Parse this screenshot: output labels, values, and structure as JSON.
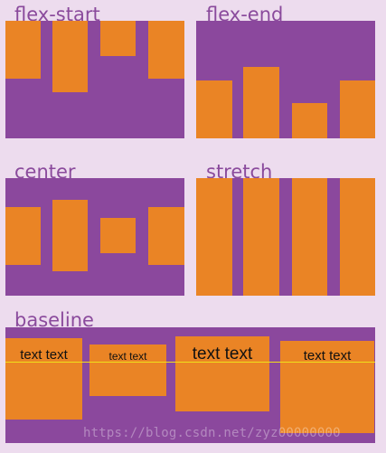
{
  "labels": {
    "flex_start": "flex-start",
    "flex_end": "flex-end",
    "center": "center",
    "stretch": "stretch",
    "baseline": "baseline"
  },
  "baseline_boxes": [
    {
      "text": "text text"
    },
    {
      "text": "text text"
    },
    {
      "text": "text text"
    },
    {
      "text": "text text"
    }
  ],
  "watermark": "https://blog.csdn.net/zyz00000000",
  "colors": {
    "page_background": "#eddcee",
    "container": "#8b489d",
    "item": "#ea8425",
    "label": "#8a4a9c",
    "baseline_line": "#f0e01a"
  }
}
